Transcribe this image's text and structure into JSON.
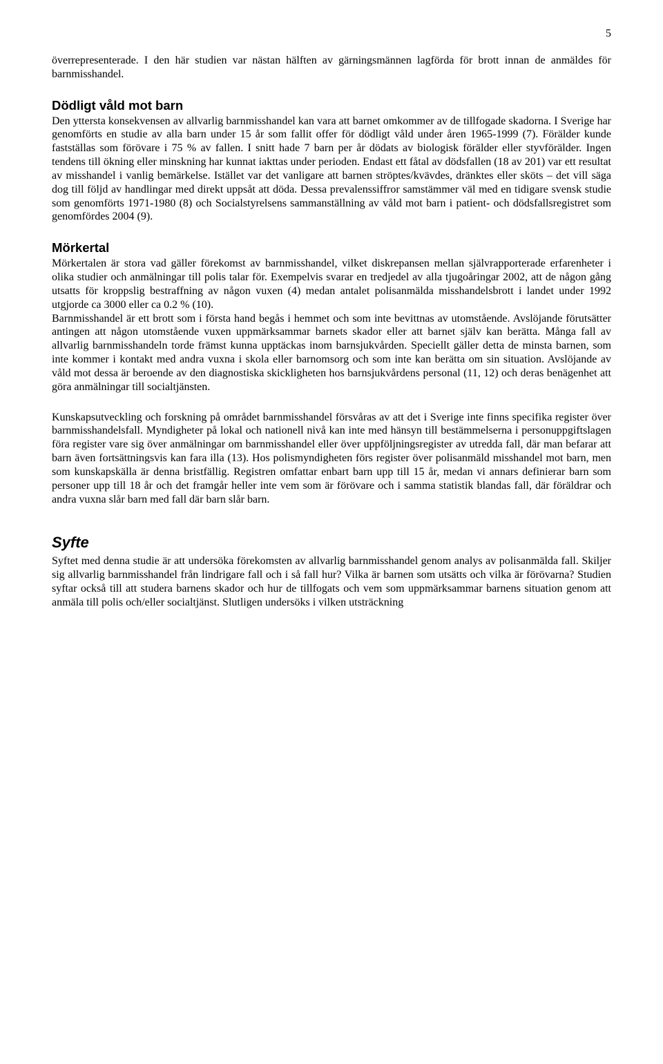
{
  "page_number": "5",
  "intro_paragraph": "överrepresenterade. I den här studien var nästan hälften av gärningsmännen lagförda för brott innan de anmäldes för barnmisshandel.",
  "sections": [
    {
      "heading": "Dödligt våld mot barn",
      "paragraphs": [
        "Den yttersta konsekvensen av allvarlig barnmisshandel kan vara att barnet omkommer av de tillfogade skadorna. I Sverige har genomförts en studie av alla barn under 15 år som fallit offer för dödligt våld under åren 1965-1999 (7). Förälder kunde fastställas som förövare i 75 % av fallen. I snitt hade 7 barn per år dödats av biologisk förälder eller styvförälder. Ingen tendens till ökning eller minskning har kunnat iakttas under perioden. Endast ett fåtal av dödsfallen (18 av 201) var ett resultat av misshandel i vanlig bemärkelse. Istället var det vanligare att barnen ströptes/kvävdes, dränktes eller sköts – det vill säga dog till följd av handlingar med direkt uppsåt att döda. Dessa prevalenssiffror samstämmer väl med en tidigare svensk studie som genomförts 1971-1980 (8) och Socialstyrelsens sammanställning av våld mot barn i patient- och dödsfallsregistret som genomfördes 2004 (9)."
      ]
    },
    {
      "heading": "Mörkertal",
      "paragraphs": [
        "Mörkertalen är stora vad gäller förekomst av barnmisshandel, vilket diskrepansen mellan självrapporterade erfarenheter i olika studier och anmälningar till polis talar för. Exempelvis svarar en tredjedel av alla tjugoåringar 2002, att de någon gång utsatts för kroppslig bestraffning av någon vuxen (4) medan antalet polisanmälda misshandelsbrott i landet under 1992 utgjorde ca 3000 eller ca 0.2 % (10).",
        "Barnmisshandel är ett brott som i första hand begås i hemmet och som inte bevittnas av utomstående. Avslöjande förutsätter antingen att någon utomstående vuxen uppmärksammar barnets skador eller att barnet själv kan berätta. Många fall av allvarlig barnmisshandeln torde främst kunna upptäckas inom barnsjukvården. Speciellt gäller detta de minsta barnen, som inte kommer i kontakt med andra vuxna i skola eller barnomsorg och som inte kan berätta om sin situation. Avslöjande av våld mot dessa är beroende av den diagnostiska skickligheten hos barnsjukvårdens personal (11, 12) och deras benägenhet att göra anmälningar till socialtjänsten.",
        "",
        "Kunskapsutveckling och forskning på området barnmisshandel försvåras av att det i Sverige inte finns specifika register över barnmisshandelsfall. Myndigheter på lokal och nationell nivå kan inte med hänsyn till bestämmelserna i personuppgiftslagen föra register vare sig över anmälningar om barnmisshandel eller över uppföljningsregister av utredda fall, där man befarar att barn även fortsättningsvis kan fara illa (13). Hos polismyndigheten förs register över polisanmäld misshandel mot barn, men som kunskapskälla är denna bristfällig. Registren omfattar enbart barn upp till 15 år, medan vi annars definierar barn som personer upp till 18 år och det framgår heller inte vem som är förövare och i samma statistik blandas fall, där föräldrar och andra vuxna slår barn med fall där barn slår barn."
      ]
    }
  ],
  "syfte": {
    "heading": "Syfte",
    "text": "Syftet med denna studie är att undersöka förekomsten av allvarlig barnmisshandel genom analys av polisanmälda fall. Skiljer sig allvarlig barnmisshandel från lindrigare fall och i så fall hur? Vilka är barnen som utsätts och vilka är förövarna? Studien syftar också till att studera barnens skador och hur de tillfogats och vem som uppmärksammar barnens situation genom att anmäla till polis och/eller socialtjänst. Slutligen undersöks i vilken utsträckning"
  }
}
